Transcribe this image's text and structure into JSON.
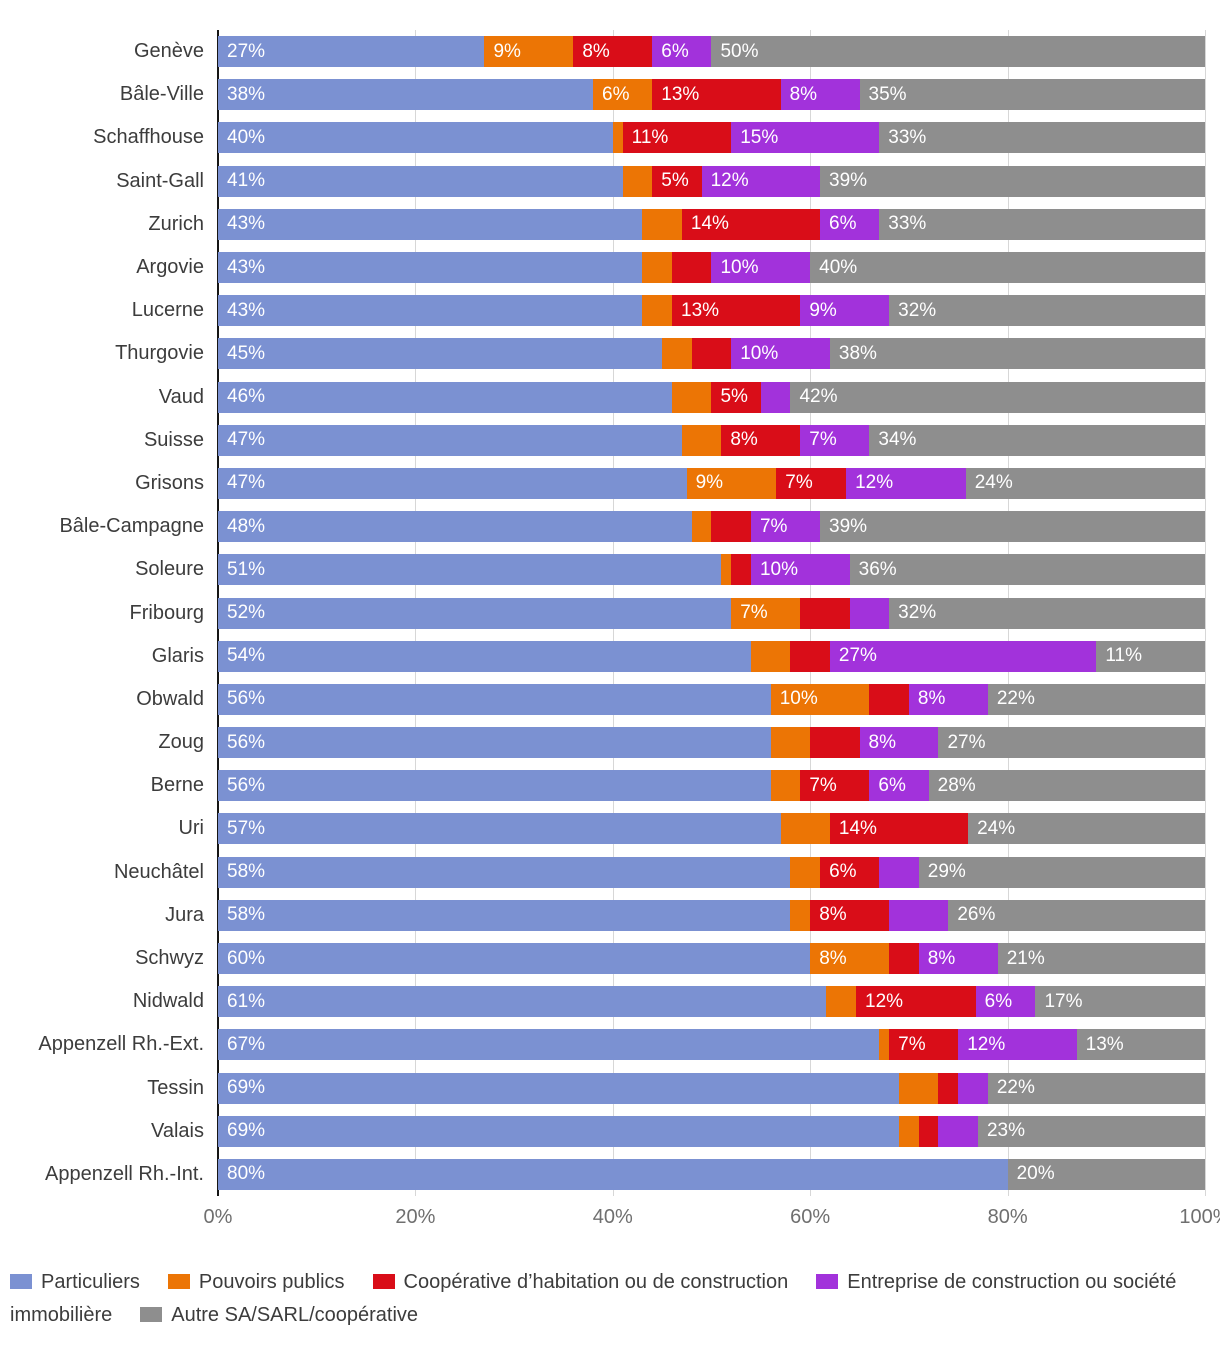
{
  "chart_data": {
    "type": "bar",
    "orientation": "horizontal",
    "stacked": true,
    "title": "",
    "xlabel": "",
    "ylabel": "",
    "grid": true,
    "legend_position": "bottom",
    "x_axis": {
      "range": [
        0,
        100
      ],
      "tick_values": [
        0,
        20,
        40,
        60,
        80,
        100
      ],
      "tick_labels": [
        "0%",
        "20%",
        "40%",
        "60%",
        "80%",
        "100%"
      ]
    },
    "series": [
      {
        "key": "particuliers",
        "name": "Particuliers",
        "color": "#7b91d2"
      },
      {
        "key": "pouvoirs-publics",
        "name": "Pouvoirs publics",
        "color": "#ec7505"
      },
      {
        "key": "cooperative-habitation",
        "name": "Coopérative d’habitation ou de construction",
        "color": "#d90d18"
      },
      {
        "key": "entreprise-construction",
        "name": "Entreprise de construction ou société immobilière",
        "color": "#a232db"
      },
      {
        "key": "autre-sa-sarl",
        "name": "Autre SA/SARL/coopérative",
        "color": "#8e8e8e"
      }
    ],
    "rows": [
      {
        "name": "Genève",
        "values": [
          27,
          9,
          8,
          6,
          50
        ],
        "labels": [
          "27%",
          "9%",
          "8%",
          "6%",
          "50%"
        ]
      },
      {
        "name": "Bâle-Ville",
        "values": [
          38,
          6,
          13,
          8,
          35
        ],
        "labels": [
          "38%",
          "6%",
          "13%",
          "8%",
          "35%"
        ]
      },
      {
        "name": "Schaffhouse",
        "values": [
          40,
          1,
          11,
          15,
          33
        ],
        "labels": [
          "40%",
          "",
          "11%",
          "15%",
          "33%"
        ]
      },
      {
        "name": "Saint-Gall",
        "values": [
          41,
          3,
          5,
          12,
          39
        ],
        "labels": [
          "41%",
          "",
          "5%",
          "12%",
          "39%"
        ]
      },
      {
        "name": "Zurich",
        "values": [
          43,
          4,
          14,
          6,
          33
        ],
        "labels": [
          "43%",
          "",
          "14%",
          "6%",
          "33%"
        ]
      },
      {
        "name": "Argovie",
        "values": [
          43,
          3,
          4,
          10,
          40
        ],
        "labels": [
          "43%",
          "",
          "",
          "10%",
          "40%"
        ]
      },
      {
        "name": "Lucerne",
        "values": [
          43,
          3,
          13,
          9,
          32
        ],
        "labels": [
          "43%",
          "",
          "13%",
          "9%",
          "32%"
        ]
      },
      {
        "name": "Thurgovie",
        "values": [
          45,
          3,
          4,
          10,
          38
        ],
        "labels": [
          "45%",
          "",
          "",
          "10%",
          "38%"
        ]
      },
      {
        "name": "Vaud",
        "values": [
          46,
          4,
          5,
          3,
          42
        ],
        "labels": [
          "46%",
          "",
          "5%",
          "",
          "42%"
        ]
      },
      {
        "name": "Suisse",
        "values": [
          47,
          4,
          8,
          7,
          34
        ],
        "labels": [
          "47%",
          "",
          "8%",
          "7%",
          "34%"
        ]
      },
      {
        "name": "Grisons",
        "values": [
          47,
          9,
          7,
          12,
          24
        ],
        "labels": [
          "47%",
          "9%",
          "7%",
          "12%",
          "24%"
        ]
      },
      {
        "name": "Bâle-Campagne",
        "values": [
          48,
          2,
          4,
          7,
          39
        ],
        "labels": [
          "48%",
          "",
          "",
          "7%",
          "39%"
        ]
      },
      {
        "name": "Soleure",
        "values": [
          51,
          1,
          2,
          10,
          36
        ],
        "labels": [
          "51%",
          "",
          "",
          "10%",
          "36%"
        ]
      },
      {
        "name": "Fribourg",
        "values": [
          52,
          7,
          5,
          4,
          32
        ],
        "labels": [
          "52%",
          "7%",
          "",
          "",
          "32%"
        ]
      },
      {
        "name": "Glaris",
        "values": [
          54,
          4,
          4,
          27,
          11
        ],
        "labels": [
          "54%",
          "",
          "",
          "27%",
          "11%"
        ]
      },
      {
        "name": "Obwald",
        "values": [
          56,
          10,
          4,
          8,
          22
        ],
        "labels": [
          "56%",
          "10%",
          "",
          "8%",
          "22%"
        ]
      },
      {
        "name": "Zoug",
        "values": [
          56,
          4,
          5,
          8,
          27
        ],
        "labels": [
          "56%",
          "",
          "",
          "8%",
          "27%"
        ]
      },
      {
        "name": "Berne",
        "values": [
          56,
          3,
          7,
          6,
          28
        ],
        "labels": [
          "56%",
          "",
          "7%",
          "6%",
          "28%"
        ]
      },
      {
        "name": "Uri",
        "values": [
          57,
          5,
          14,
          0,
          24
        ],
        "labels": [
          "57%",
          "",
          "14%",
          "",
          "24%"
        ]
      },
      {
        "name": "Neuchâtel",
        "values": [
          58,
          3,
          6,
          4,
          29
        ],
        "labels": [
          "58%",
          "",
          "6%",
          "",
          "29%"
        ]
      },
      {
        "name": "Jura",
        "values": [
          58,
          2,
          8,
          6,
          26
        ],
        "labels": [
          "58%",
          "",
          "8%",
          "",
          "26%"
        ]
      },
      {
        "name": "Schwyz",
        "values": [
          60,
          8,
          3,
          8,
          21
        ],
        "labels": [
          "60%",
          "8%",
          "",
          "8%",
          "21%"
        ]
      },
      {
        "name": "Nidwald",
        "values": [
          61,
          3,
          12,
          6,
          17
        ],
        "labels": [
          "61%",
          "",
          "12%",
          "6%",
          "17%"
        ]
      },
      {
        "name": "Appenzell Rh.-Ext.",
        "values": [
          67,
          1,
          7,
          12,
          13
        ],
        "labels": [
          "67%",
          "",
          "7%",
          "12%",
          "13%"
        ]
      },
      {
        "name": "Tessin",
        "values": [
          69,
          4,
          2,
          3,
          22
        ],
        "labels": [
          "69%",
          "",
          "",
          "",
          "22%"
        ]
      },
      {
        "name": "Valais",
        "values": [
          69,
          2,
          2,
          4,
          23
        ],
        "labels": [
          "69%",
          "",
          "",
          "",
          "23%"
        ]
      },
      {
        "name": "Appenzell Rh.-Int.",
        "values": [
          80,
          0,
          0,
          0,
          20
        ],
        "labels": [
          "80%",
          "",
          "",
          "",
          "20%"
        ]
      }
    ]
  },
  "colors": {
    "gridline": "#d7d7d7",
    "zero_line": "#161616",
    "axis_text": "#6f6f6f",
    "category_text": "#3c3c3c",
    "segment_label_text": "#ffffff"
  }
}
